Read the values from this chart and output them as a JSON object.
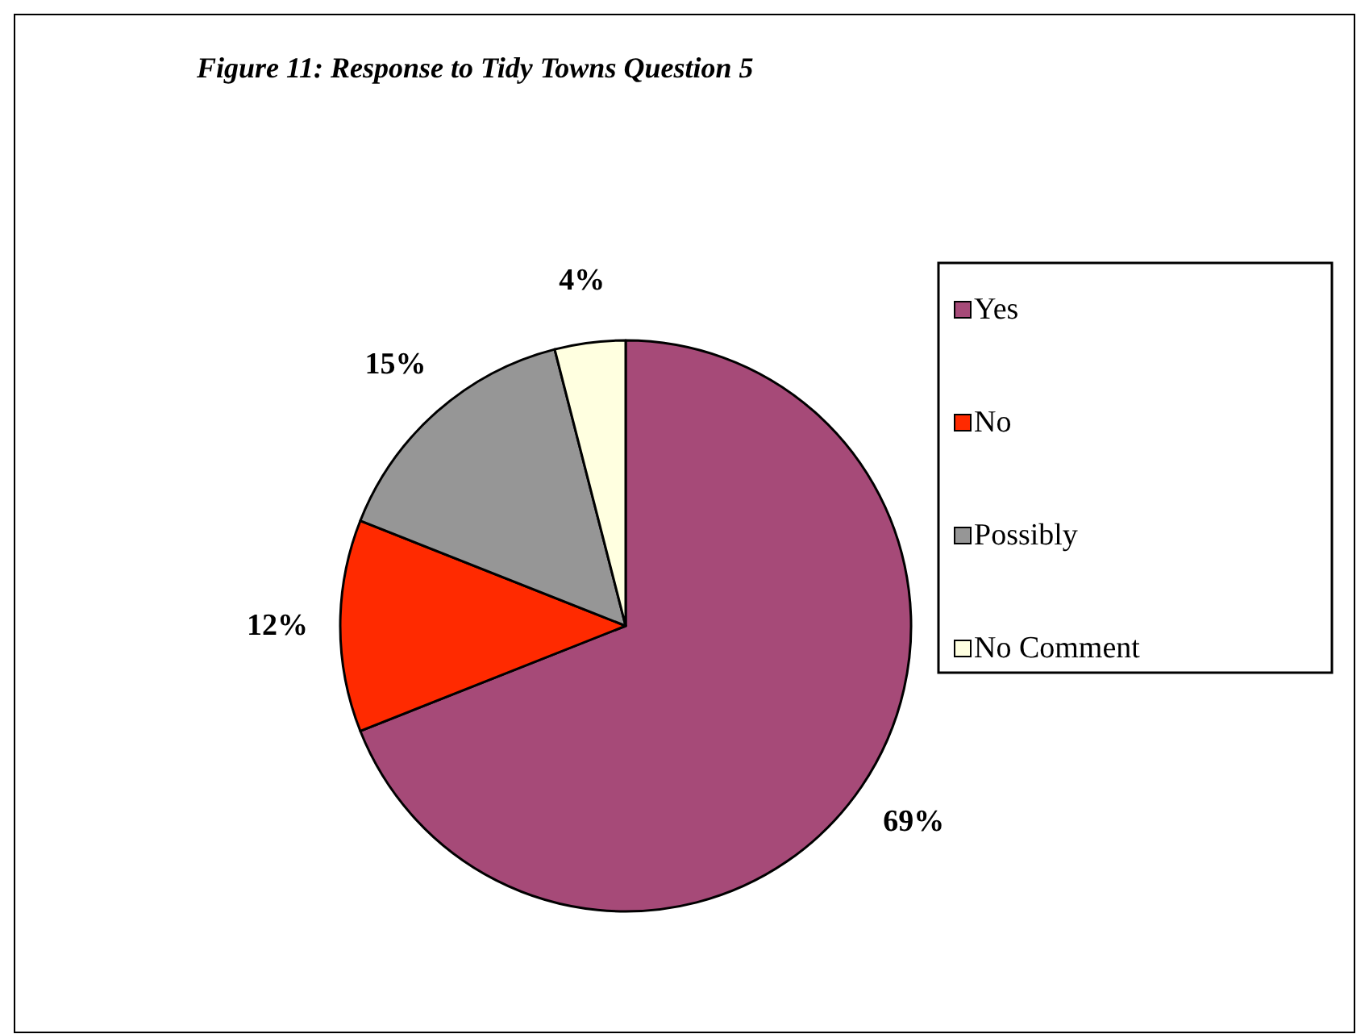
{
  "chart_data": {
    "type": "pie",
    "title": "Figure 11: Response to Tidy Towns Question 5",
    "categories": [
      "Yes",
      "No",
      "Possibly",
      "No Comment"
    ],
    "values": [
      69,
      12,
      15,
      4
    ],
    "colors": [
      "#a64a78",
      "#ff2a00",
      "#969696",
      "#ffffe0"
    ],
    "value_labels": [
      "69%",
      "12%",
      "15%",
      "4%"
    ],
    "legend": "right"
  }
}
